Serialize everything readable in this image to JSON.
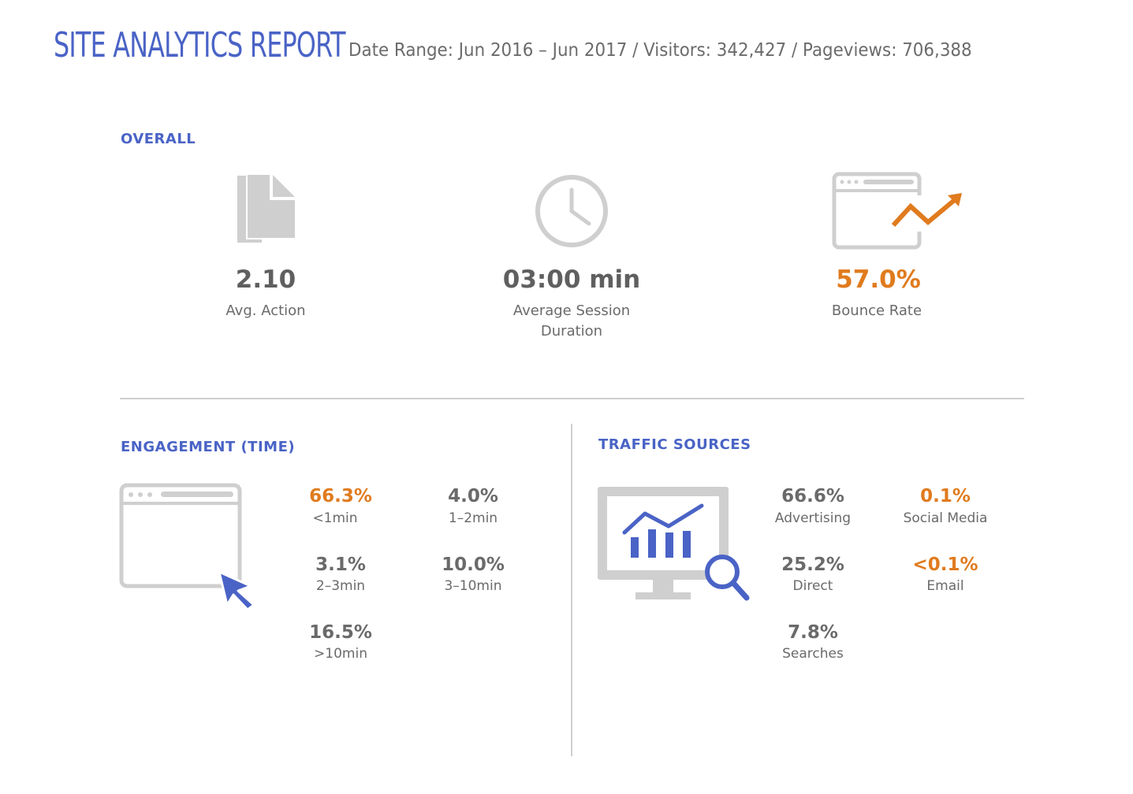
{
  "header": {
    "title": "SITE ANALYTICS REPORT",
    "subtitle": "Date Range: Jun 2016 – Jun 2017 / Visitors: 342,427 / Pageviews: 706,388"
  },
  "overall": {
    "heading": "OVERALL",
    "metrics": [
      {
        "value": "2.10",
        "label": "Avg. Action",
        "icon": "document-icon"
      },
      {
        "value": "03:00 min",
        "label_line1": "Average Session",
        "label_line2": "Duration",
        "icon": "clock-icon"
      },
      {
        "value": "57.0%",
        "label": "Bounce Rate",
        "icon": "browser-trend-icon"
      }
    ]
  },
  "engagement": {
    "heading": "ENGAGEMENT (TIME)",
    "icon": "browser-cursor-icon",
    "stats": [
      {
        "value": "66.3%",
        "label": "<1min"
      },
      {
        "value": "4.0%",
        "label": "1–2min"
      },
      {
        "value": "3.1%",
        "label": "2–3min"
      },
      {
        "value": "10.0%",
        "label": "3–10min"
      },
      {
        "value": "16.5%",
        "label": ">10min"
      }
    ]
  },
  "traffic": {
    "heading": "TRAFFIC SOURCES",
    "icon": "monitor-chart-search-icon",
    "stats": [
      {
        "value": "66.6%",
        "label": "Advertising"
      },
      {
        "value": "0.1%",
        "label": "Social Media"
      },
      {
        "value": "25.2%",
        "label": "Direct"
      },
      {
        "value": "<0.1%",
        "label": "Email"
      },
      {
        "value": "7.8%",
        "label": "Searches"
      }
    ]
  },
  "colors": {
    "accent_blue": "#4a63c6",
    "accent_orange": "#e07b1e",
    "icon_gray": "#cfcfcf",
    "text_gray": "#666666"
  }
}
